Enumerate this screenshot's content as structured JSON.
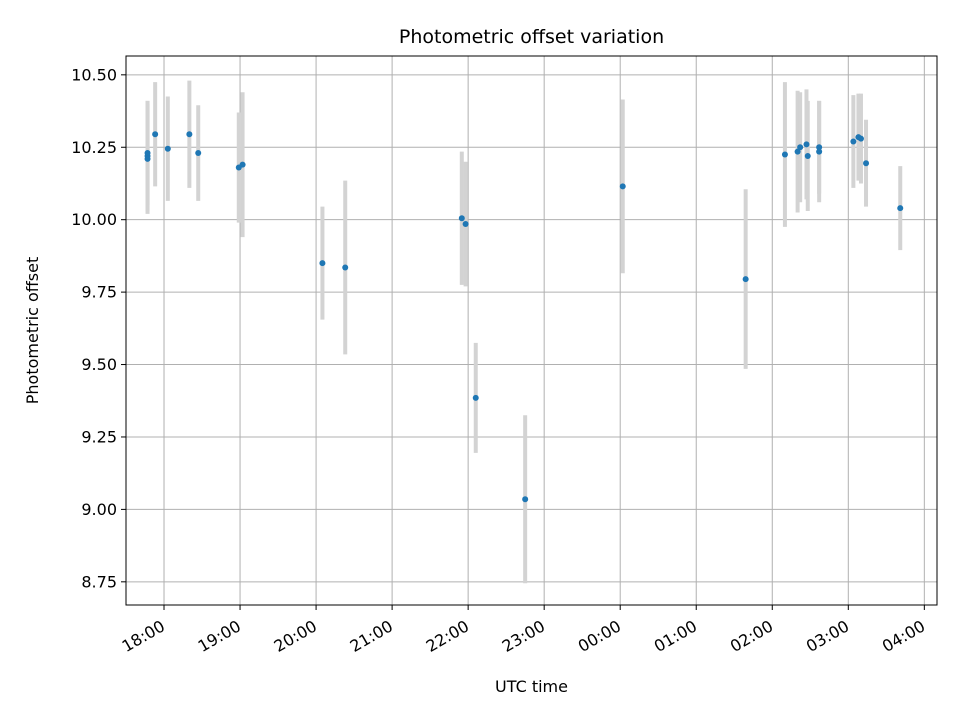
{
  "chart_data": {
    "type": "scatter",
    "title": "Photometric offset variation",
    "xlabel": "UTC time",
    "ylabel": "Photometric offset",
    "xlim": [
      "17:30",
      "04:10"
    ],
    "ylim": [
      8.67,
      10.565
    ],
    "grid": true,
    "x_ticks": [
      "18:00",
      "19:00",
      "20:00",
      "21:00",
      "22:00",
      "23:00",
      "00:00",
      "01:00",
      "02:00",
      "03:00",
      "04:00"
    ],
    "y_ticks": [
      "8.75",
      "9.00",
      "9.25",
      "9.50",
      "9.75",
      "10.00",
      "10.25",
      "10.50"
    ],
    "colors": {
      "point": "#1f77b4",
      "errorbar": "#d3d3d3",
      "grid": "#b0b0b0"
    },
    "series": [
      {
        "points": [
          {
            "time": "17:47",
            "y": 10.22,
            "err": 0.19
          },
          {
            "time": "17:47",
            "y": 10.21,
            "err": 0.19
          },
          {
            "time": "17:47",
            "y": 10.23,
            "err": 0.18
          },
          {
            "time": "17:53",
            "y": 10.295,
            "err": 0.18
          },
          {
            "time": "18:03",
            "y": 10.245,
            "err": 0.18
          },
          {
            "time": "18:20",
            "y": 10.295,
            "err": 0.185
          },
          {
            "time": "18:27",
            "y": 10.23,
            "err": 0.165
          },
          {
            "time": "18:59",
            "y": 10.18,
            "err": 0.19
          },
          {
            "time": "19:02",
            "y": 10.19,
            "err": 0.25
          },
          {
            "time": "20:05",
            "y": 9.85,
            "err": 0.195
          },
          {
            "time": "20:23",
            "y": 9.835,
            "err": 0.3
          },
          {
            "time": "21:55",
            "y": 10.005,
            "err": 0.23
          },
          {
            "time": "21:58",
            "y": 9.985,
            "err": 0.215
          },
          {
            "time": "22:06",
            "y": 9.385,
            "err": 0.19
          },
          {
            "time": "22:45",
            "y": 9.035,
            "err": 0.29
          },
          {
            "time": "00:02",
            "y": 10.115,
            "err": 0.3
          },
          {
            "time": "01:39",
            "y": 9.795,
            "err": 0.31
          },
          {
            "time": "02:10",
            "y": 10.225,
            "err": 0.25
          },
          {
            "time": "02:20",
            "y": 10.235,
            "err": 0.21
          },
          {
            "time": "02:22",
            "y": 10.25,
            "err": 0.19
          },
          {
            "time": "02:27",
            "y": 10.26,
            "err": 0.19
          },
          {
            "time": "02:28",
            "y": 10.22,
            "err": 0.19
          },
          {
            "time": "02:37",
            "y": 10.235,
            "err": 0.175
          },
          {
            "time": "02:37",
            "y": 10.25,
            "err": 0.16
          },
          {
            "time": "03:04",
            "y": 10.27,
            "err": 0.16
          },
          {
            "time": "03:08",
            "y": 10.285,
            "err": 0.15
          },
          {
            "time": "03:10",
            "y": 10.28,
            "err": 0.155
          },
          {
            "time": "03:14",
            "y": 10.195,
            "err": 0.15
          },
          {
            "time": "03:41",
            "y": 10.04,
            "err": 0.145
          }
        ]
      }
    ]
  }
}
